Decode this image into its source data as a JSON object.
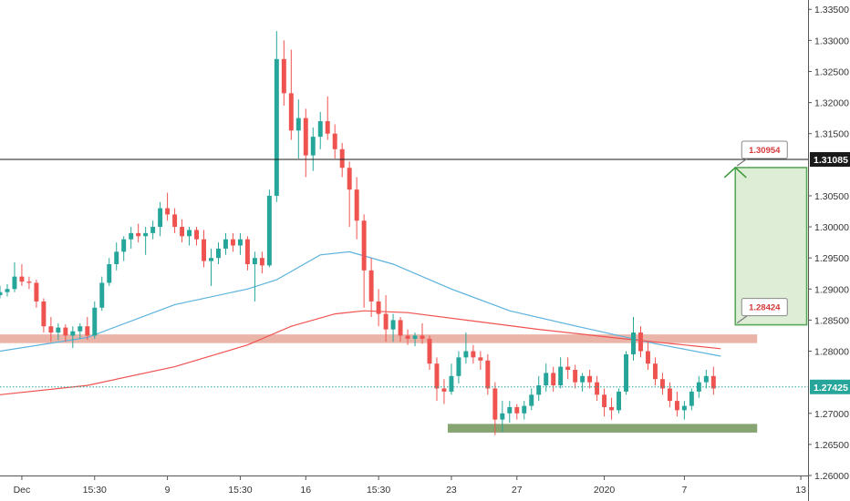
{
  "chart_data": {
    "type": "candlestick",
    "title": "",
    "xlabel": "",
    "ylabel": "",
    "ylim": [
      1.26,
      1.3365
    ],
    "y_ticks": [
      "1.33500",
      "1.33000",
      "1.32500",
      "1.32000",
      "1.31500",
      "1.31085",
      "1.30500",
      "1.30000",
      "1.29500",
      "1.29000",
      "1.28500",
      "1.28000",
      "1.27425",
      "1.27000",
      "1.26500",
      "1.26000"
    ],
    "x_ticks": [
      {
        "label": "Dec",
        "bar": 3
      },
      {
        "label": "15:30",
        "bar": 13
      },
      {
        "label": "9",
        "bar": 23
      },
      {
        "label": "15:30",
        "bar": 33
      },
      {
        "label": "16",
        "bar": 42
      },
      {
        "label": "15:30",
        "bar": 52
      },
      {
        "label": "23",
        "bar": 62
      },
      {
        "label": "27",
        "bar": 71
      },
      {
        "label": "2020",
        "bar": 83
      },
      {
        "label": "7",
        "bar": 94
      },
      {
        "label": "13",
        "bar": 110
      }
    ],
    "x_range_bars": [
      0,
      117
    ],
    "colors": {
      "up": "#26a69a",
      "down": "#ef5350",
      "ma_fast": "#5cb3dd",
      "ma_slow": "#ef5350",
      "resistance": "#e8a79a",
      "support": "#7fa06a",
      "target": "#3d9a3d",
      "last_price_line": "#26a69a"
    },
    "reference_lines": [
      {
        "label": "1.31085",
        "value": 1.31085,
        "color": "#1a1a1a",
        "style": "solid"
      },
      {
        "label": "1.27425",
        "value": 1.27425,
        "color": "#26a69a",
        "style": "dotted"
      }
    ],
    "zones": [
      {
        "name": "resistance",
        "y_range": [
          1.2813,
          1.2827
        ],
        "x_range": [
          0,
          104
        ]
      },
      {
        "name": "support",
        "y_range": [
          1.2669,
          1.2683
        ],
        "x_range": [
          62,
          104
        ]
      }
    ],
    "target_box": {
      "y_range": [
        1.28424,
        1.30954
      ],
      "x_range": [
        101,
        110
      ]
    },
    "annotations": [
      {
        "text": "1.30954",
        "value": 1.30954,
        "bar": 103
      },
      {
        "text": "1.28424",
        "value": 1.28424,
        "bar": 103
      }
    ],
    "ma_fast": {
      "bars": [
        0,
        12,
        24,
        34,
        38,
        44,
        48,
        54,
        62,
        70,
        80,
        90,
        99
      ],
      "values": [
        1.28,
        1.2822,
        1.2875,
        1.29,
        1.2915,
        1.2955,
        1.296,
        1.294,
        1.29,
        1.2865,
        1.2838,
        1.2812,
        1.2792
      ]
    },
    "ma_slow": {
      "bars": [
        0,
        12,
        24,
        34,
        40,
        46,
        50,
        56,
        64,
        74,
        84,
        94,
        99
      ],
      "values": [
        1.273,
        1.2745,
        1.2775,
        1.281,
        1.284,
        1.286,
        1.2865,
        1.2862,
        1.285,
        1.2835,
        1.2822,
        1.281,
        1.2804
      ]
    },
    "candles": [
      {
        "o": 1.289,
        "h": 1.2905,
        "l": 1.2885,
        "c": 1.2895
      },
      {
        "o": 1.2895,
        "h": 1.2908,
        "l": 1.2888,
        "c": 1.29
      },
      {
        "o": 1.29,
        "h": 1.2943,
        "l": 1.2895,
        "c": 1.292
      },
      {
        "o": 1.292,
        "h": 1.294,
        "l": 1.2905,
        "c": 1.2912
      },
      {
        "o": 1.2912,
        "h": 1.292,
        "l": 1.29,
        "c": 1.291
      },
      {
        "o": 1.291,
        "h": 1.2915,
        "l": 1.287,
        "c": 1.288
      },
      {
        "o": 1.288,
        "h": 1.2885,
        "l": 1.283,
        "c": 1.284
      },
      {
        "o": 1.284,
        "h": 1.2855,
        "l": 1.2815,
        "c": 1.283
      },
      {
        "o": 1.283,
        "h": 1.2845,
        "l": 1.2818,
        "c": 1.2838
      },
      {
        "o": 1.2838,
        "h": 1.2843,
        "l": 1.2815,
        "c": 1.2825
      },
      {
        "o": 1.2825,
        "h": 1.284,
        "l": 1.2805,
        "c": 1.2832
      },
      {
        "o": 1.2832,
        "h": 1.2845,
        "l": 1.282,
        "c": 1.284
      },
      {
        "o": 1.284,
        "h": 1.2855,
        "l": 1.2818,
        "c": 1.2825
      },
      {
        "o": 1.2825,
        "h": 1.288,
        "l": 1.282,
        "c": 1.287
      },
      {
        "o": 1.287,
        "h": 1.292,
        "l": 1.2865,
        "c": 1.291
      },
      {
        "o": 1.291,
        "h": 1.295,
        "l": 1.2905,
        "c": 1.294
      },
      {
        "o": 1.294,
        "h": 1.2975,
        "l": 1.293,
        "c": 1.296
      },
      {
        "o": 1.296,
        "h": 1.2985,
        "l": 1.2945,
        "c": 1.298
      },
      {
        "o": 1.298,
        "h": 1.3,
        "l": 1.2965,
        "c": 1.299
      },
      {
        "o": 1.299,
        "h": 1.3005,
        "l": 1.2975,
        "c": 1.2985
      },
      {
        "o": 1.2985,
        "h": 1.3,
        "l": 1.2955,
        "c": 1.299
      },
      {
        "o": 1.299,
        "h": 1.301,
        "l": 1.298,
        "c": 1.3
      },
      {
        "o": 1.3,
        "h": 1.304,
        "l": 1.2985,
        "c": 1.303
      },
      {
        "o": 1.303,
        "h": 1.3055,
        "l": 1.301,
        "c": 1.302
      },
      {
        "o": 1.302,
        "h": 1.303,
        "l": 1.299,
        "c": 1.3
      },
      {
        "o": 1.3,
        "h": 1.3012,
        "l": 1.2975,
        "c": 1.2985
      },
      {
        "o": 1.2985,
        "h": 1.3,
        "l": 1.297,
        "c": 1.2995
      },
      {
        "o": 1.2995,
        "h": 1.3,
        "l": 1.297,
        "c": 1.298
      },
      {
        "o": 1.298,
        "h": 1.2995,
        "l": 1.2935,
        "c": 1.2945
      },
      {
        "o": 1.2945,
        "h": 1.2965,
        "l": 1.2905,
        "c": 1.295
      },
      {
        "o": 1.295,
        "h": 1.2975,
        "l": 1.294,
        "c": 1.2965
      },
      {
        "o": 1.2965,
        "h": 1.299,
        "l": 1.2955,
        "c": 1.298
      },
      {
        "o": 1.298,
        "h": 1.299,
        "l": 1.296,
        "c": 1.297
      },
      {
        "o": 1.297,
        "h": 1.299,
        "l": 1.2955,
        "c": 1.298
      },
      {
        "o": 1.298,
        "h": 1.2985,
        "l": 1.293,
        "c": 1.294
      },
      {
        "o": 1.294,
        "h": 1.296,
        "l": 1.288,
        "c": 1.295
      },
      {
        "o": 1.295,
        "h": 1.296,
        "l": 1.2925,
        "c": 1.2938
      },
      {
        "o": 1.2938,
        "h": 1.306,
        "l": 1.2935,
        "c": 1.305
      },
      {
        "o": 1.305,
        "h": 1.3315,
        "l": 1.304,
        "c": 1.327
      },
      {
        "o": 1.327,
        "h": 1.33,
        "l": 1.3195,
        "c": 1.3215
      },
      {
        "o": 1.3215,
        "h": 1.3285,
        "l": 1.314,
        "c": 1.3155
      },
      {
        "o": 1.3155,
        "h": 1.3205,
        "l": 1.311,
        "c": 1.3175
      },
      {
        "o": 1.3175,
        "h": 1.319,
        "l": 1.308,
        "c": 1.3115
      },
      {
        "o": 1.3115,
        "h": 1.316,
        "l": 1.309,
        "c": 1.3145
      },
      {
        "o": 1.3145,
        "h": 1.3185,
        "l": 1.3125,
        "c": 1.317
      },
      {
        "o": 1.317,
        "h": 1.321,
        "l": 1.314,
        "c": 1.315
      },
      {
        "o": 1.315,
        "h": 1.3165,
        "l": 1.311,
        "c": 1.3125
      },
      {
        "o": 1.3125,
        "h": 1.3135,
        "l": 1.308,
        "c": 1.3095
      },
      {
        "o": 1.3095,
        "h": 1.3105,
        "l": 1.3,
        "c": 1.306
      },
      {
        "o": 1.306,
        "h": 1.308,
        "l": 1.298,
        "c": 1.301
      },
      {
        "o": 1.301,
        "h": 1.302,
        "l": 1.287,
        "c": 1.293
      },
      {
        "o": 1.293,
        "h": 1.295,
        "l": 1.2855,
        "c": 1.288
      },
      {
        "o": 1.288,
        "h": 1.29,
        "l": 1.284,
        "c": 1.286
      },
      {
        "o": 1.286,
        "h": 1.289,
        "l": 1.2815,
        "c": 1.2835
      },
      {
        "o": 1.2835,
        "h": 1.286,
        "l": 1.2815,
        "c": 1.285
      },
      {
        "o": 1.285,
        "h": 1.2855,
        "l": 1.2815,
        "c": 1.2825
      },
      {
        "o": 1.2825,
        "h": 1.2835,
        "l": 1.281,
        "c": 1.282
      },
      {
        "o": 1.282,
        "h": 1.283,
        "l": 1.2808,
        "c": 1.2825
      },
      {
        "o": 1.2825,
        "h": 1.2845,
        "l": 1.2812,
        "c": 1.282
      },
      {
        "o": 1.282,
        "h": 1.2825,
        "l": 1.277,
        "c": 1.278
      },
      {
        "o": 1.278,
        "h": 1.279,
        "l": 1.272,
        "c": 1.274
      },
      {
        "o": 1.274,
        "h": 1.2755,
        "l": 1.2715,
        "c": 1.2735
      },
      {
        "o": 1.2735,
        "h": 1.278,
        "l": 1.273,
        "c": 1.276
      },
      {
        "o": 1.276,
        "h": 1.28,
        "l": 1.2748,
        "c": 1.279
      },
      {
        "o": 1.279,
        "h": 1.283,
        "l": 1.278,
        "c": 1.28
      },
      {
        "o": 1.28,
        "h": 1.281,
        "l": 1.278,
        "c": 1.279
      },
      {
        "o": 1.279,
        "h": 1.28,
        "l": 1.277,
        "c": 1.2785
      },
      {
        "o": 1.2785,
        "h": 1.2795,
        "l": 1.273,
        "c": 1.274
      },
      {
        "o": 1.274,
        "h": 1.275,
        "l": 1.2665,
        "c": 1.269
      },
      {
        "o": 1.269,
        "h": 1.272,
        "l": 1.267,
        "c": 1.27
      },
      {
        "o": 1.27,
        "h": 1.272,
        "l": 1.2685,
        "c": 1.271
      },
      {
        "o": 1.271,
        "h": 1.2715,
        "l": 1.269,
        "c": 1.27
      },
      {
        "o": 1.27,
        "h": 1.272,
        "l": 1.269,
        "c": 1.2712
      },
      {
        "o": 1.2712,
        "h": 1.274,
        "l": 1.2705,
        "c": 1.273
      },
      {
        "o": 1.273,
        "h": 1.276,
        "l": 1.272,
        "c": 1.2745
      },
      {
        "o": 1.2745,
        "h": 1.278,
        "l": 1.2735,
        "c": 1.2765
      },
      {
        "o": 1.2765,
        "h": 1.2775,
        "l": 1.2735,
        "c": 1.2745
      },
      {
        "o": 1.2745,
        "h": 1.279,
        "l": 1.274,
        "c": 1.2775
      },
      {
        "o": 1.2775,
        "h": 1.279,
        "l": 1.2755,
        "c": 1.277
      },
      {
        "o": 1.277,
        "h": 1.2778,
        "l": 1.274,
        "c": 1.275
      },
      {
        "o": 1.275,
        "h": 1.2765,
        "l": 1.2735,
        "c": 1.276
      },
      {
        "o": 1.276,
        "h": 1.277,
        "l": 1.274,
        "c": 1.275
      },
      {
        "o": 1.275,
        "h": 1.276,
        "l": 1.272,
        "c": 1.273
      },
      {
        "o": 1.273,
        "h": 1.274,
        "l": 1.2695,
        "c": 1.271
      },
      {
        "o": 1.271,
        "h": 1.2725,
        "l": 1.269,
        "c": 1.2705
      },
      {
        "o": 1.2705,
        "h": 1.274,
        "l": 1.27,
        "c": 1.2735
      },
      {
        "o": 1.2735,
        "h": 1.28,
        "l": 1.273,
        "c": 1.2795
      },
      {
        "o": 1.2795,
        "h": 1.2855,
        "l": 1.2785,
        "c": 1.283
      },
      {
        "o": 1.283,
        "h": 1.284,
        "l": 1.279,
        "c": 1.28
      },
      {
        "o": 1.28,
        "h": 1.2815,
        "l": 1.277,
        "c": 1.278
      },
      {
        "o": 1.278,
        "h": 1.279,
        "l": 1.2745,
        "c": 1.2755
      },
      {
        "o": 1.2755,
        "h": 1.2765,
        "l": 1.273,
        "c": 1.274
      },
      {
        "o": 1.274,
        "h": 1.275,
        "l": 1.271,
        "c": 1.272
      },
      {
        "o": 1.272,
        "h": 1.2735,
        "l": 1.2695,
        "c": 1.2705
      },
      {
        "o": 1.2705,
        "h": 1.272,
        "l": 1.269,
        "c": 1.2712
      },
      {
        "o": 1.2712,
        "h": 1.274,
        "l": 1.2705,
        "c": 1.2735
      },
      {
        "o": 1.2735,
        "h": 1.276,
        "l": 1.2725,
        "c": 1.275
      },
      {
        "o": 1.275,
        "h": 1.277,
        "l": 1.274,
        "c": 1.276
      },
      {
        "o": 1.276,
        "h": 1.2775,
        "l": 1.273,
        "c": 1.274
      }
    ]
  }
}
